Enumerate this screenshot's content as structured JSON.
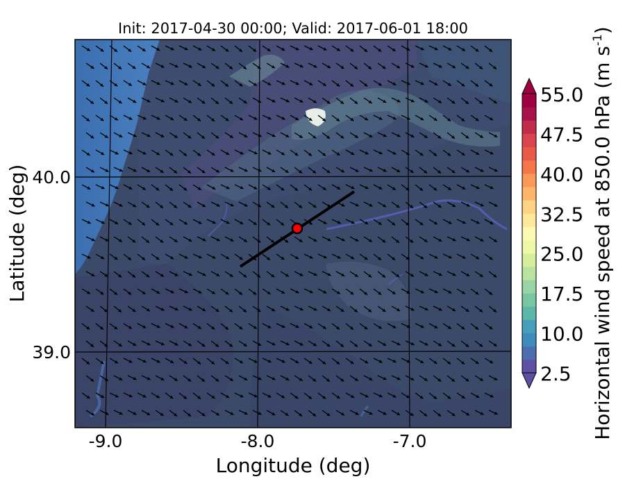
{
  "title": "Init: 2017-04-30 00:00; Valid: 2017-06-01 18:00",
  "axes": {
    "xlabel": "Longitude (deg)",
    "ylabel": "Latitude (deg)",
    "xticks": [
      "-9.0",
      "-8.0",
      "-7.0"
    ],
    "yticks": [
      "40.0",
      "39.0"
    ]
  },
  "colorbar": {
    "label": "Horizontal wind speed at 850.0 hPa (m s",
    "label_sup": "-1",
    "label_close": ")",
    "tick_labels": [
      "55.0",
      "47.5",
      "40.0",
      "32.5",
      "25.0",
      "17.5",
      "10.0",
      "2.5"
    ],
    "min": 2.5,
    "max": 55.0,
    "step": 2.5,
    "extend": "both",
    "colormap": "Spectral_r",
    "colors": [
      "#5e4fa2",
      "#4c6db0",
      "#3f8cbc",
      "#459fba",
      "#5db7a9",
      "#78c6a4",
      "#99d5a4",
      "#bae3a0",
      "#d6ee9b",
      "#eef8a6",
      "#fbf9b2",
      "#fee99a",
      "#fed383",
      "#fdb56a",
      "#fa9857",
      "#f57749",
      "#e85a47",
      "#d9444d",
      "#c22b4a",
      "#a8124a",
      "#9e0142"
    ],
    "under_color": "#5e4fa2",
    "over_color": "#9e0142"
  },
  "chart_data": {
    "type": "heatmap",
    "title": "Init: 2017-04-30 00:00; Valid: 2017-06-01 18:00",
    "xlabel": "Longitude (deg)",
    "ylabel": "Latitude (deg)",
    "xlim": [
      -9.25,
      -6.35
    ],
    "ylim": [
      38.55,
      40.8
    ],
    "grid": true,
    "variable": "Horizontal wind speed at 850.0 hPa",
    "units": "m s-1",
    "value_range_approx": [
      2.5,
      10.0
    ],
    "wind_vectors": {
      "direction": "north-westerly (pointing south-east)"
    },
    "marker": {
      "lon": -7.75,
      "lat": 39.7,
      "color": "#ff0000"
    },
    "cross_section_line": [
      [
        -8.12,
        39.48
      ],
      [
        -7.38,
        39.92
      ]
    ]
  }
}
